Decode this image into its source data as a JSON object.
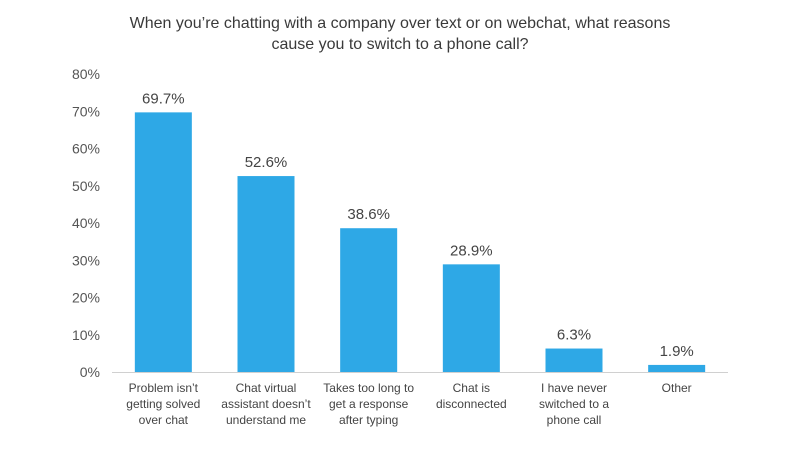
{
  "chart_data": {
    "type": "bar",
    "title_lines": [
      "When you’re chatting with a company over text or on webchat, what reasons",
      "cause you to switch to a phone call?"
    ],
    "categories": [
      [
        "Problem isn’t",
        "getting solved",
        "over chat"
      ],
      [
        "Chat virtual",
        "assistant doesn’t",
        "understand me"
      ],
      [
        "Takes too long to",
        "get a response",
        "after typing"
      ],
      [
        "Chat is",
        "disconnected"
      ],
      [
        "I have never",
        "switched to a",
        "phone call"
      ],
      [
        "Other"
      ]
    ],
    "values": [
      69.7,
      52.6,
      38.6,
      28.9,
      6.3,
      1.9
    ],
    "value_labels": [
      "69.7%",
      "52.6%",
      "38.6%",
      "28.9%",
      "6.3%",
      "1.9%"
    ],
    "ylim": [
      0,
      80
    ],
    "yticks": [
      0,
      10,
      20,
      30,
      40,
      50,
      60,
      70,
      80
    ],
    "ytick_labels": [
      "0%",
      "10%",
      "20%",
      "30%",
      "40%",
      "50%",
      "60%",
      "70%",
      "80%"
    ],
    "grid": false,
    "bar_color": "#2ea8e6",
    "axis_color": "#d0d0d0"
  }
}
